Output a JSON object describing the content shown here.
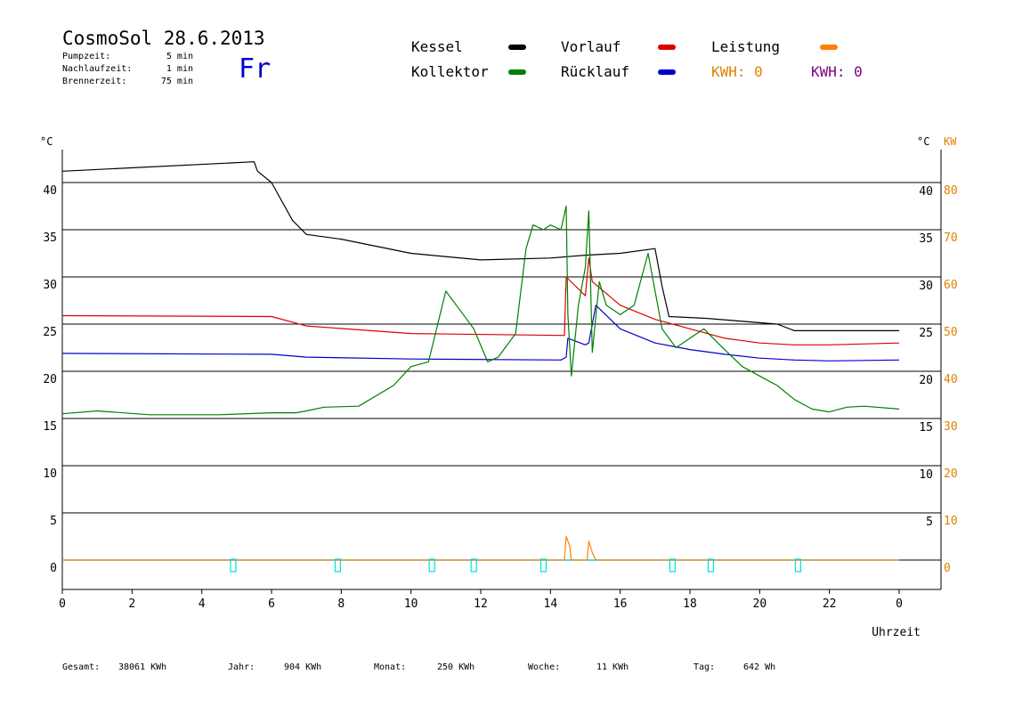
{
  "header": {
    "title": "CosmoSol 28.6.2013",
    "day": "Fr",
    "times": [
      {
        "label": "Pumpzeit:",
        "value": "5 min"
      },
      {
        "label": "Nachlaufzeit:",
        "value": "1 min"
      },
      {
        "label": "Brennerzeit:",
        "value": "75 min"
      }
    ]
  },
  "legend": {
    "kessel": "Kessel",
    "vorlauf": "Vorlauf",
    "leistung": "Leistung",
    "kollektor": "Kollektor",
    "ruecklauf": "Rücklauf",
    "kwh1": "KWH: 0",
    "kwh2": "KWH: 0"
  },
  "colors": {
    "kessel": "#000000",
    "vorlauf": "#dd0000",
    "leistung": "#ff8000",
    "kollektor": "#008000",
    "ruecklauf": "#0000cc",
    "kwh2": "#800080",
    "pump": "#00e0e0",
    "axis_right": "#e08000"
  },
  "footer": {
    "gesamt_label": "Gesamt:",
    "gesamt_value": "38061 KWh",
    "jahr_label": "Jahr:",
    "jahr_value": "904 KWh",
    "monat_label": "Monat:",
    "monat_value": "250 KWh",
    "woche_label": "Woche:",
    "woche_value": "11 KWh",
    "tag_label": "Tag:",
    "tag_value": "642 Wh"
  },
  "chart_data": {
    "type": "line",
    "xlabel": "Uhrzeit",
    "ylabel_left": "°C",
    "ylabel_right_temp": "°C",
    "ylabel_right_power": "KW",
    "x_ticks": [
      "0",
      "2",
      "4",
      "6",
      "8",
      "10",
      "12",
      "14",
      "16",
      "18",
      "20",
      "22",
      "0"
    ],
    "y_left_ticks": [
      "0",
      "5",
      "10",
      "15",
      "20",
      "25",
      "30",
      "35",
      "40"
    ],
    "y_right_temp_ticks": [
      "5",
      "10",
      "15",
      "20",
      "25",
      "30",
      "35",
      "40"
    ],
    "y_right_power_ticks": [
      "0",
      "10",
      "20",
      "30",
      "40",
      "50",
      "60",
      "70",
      "80"
    ],
    "xlim": [
      0,
      24
    ],
    "ylim": [
      0,
      43
    ],
    "series": [
      {
        "name": "Kessel",
        "key": "kessel",
        "points": [
          [
            0,
            41.2
          ],
          [
            5.5,
            42.2
          ],
          [
            5.6,
            41.2
          ],
          [
            6.0,
            40.0
          ],
          [
            6.6,
            36.0
          ],
          [
            7.0,
            34.5
          ],
          [
            8.0,
            34.0
          ],
          [
            10.0,
            32.5
          ],
          [
            12.0,
            31.8
          ],
          [
            14.0,
            32.0
          ],
          [
            15.0,
            32.3
          ],
          [
            16.0,
            32.5
          ],
          [
            17.0,
            33.0
          ],
          [
            17.2,
            29.0
          ],
          [
            17.4,
            25.8
          ],
          [
            18.5,
            25.6
          ],
          [
            20.5,
            25.0
          ],
          [
            21.0,
            24.3
          ],
          [
            24,
            24.3
          ]
        ]
      },
      {
        "name": "Vorlauf",
        "key": "vorlauf",
        "points": [
          [
            0,
            25.9
          ],
          [
            6.0,
            25.8
          ],
          [
            7.0,
            24.8
          ],
          [
            10.0,
            24.0
          ],
          [
            14.3,
            23.8
          ],
          [
            14.4,
            23.8
          ],
          [
            14.45,
            30.0
          ],
          [
            15.0,
            28.0
          ],
          [
            15.1,
            32.0
          ],
          [
            15.2,
            29.5
          ],
          [
            16.0,
            27.0
          ],
          [
            17.0,
            25.5
          ],
          [
            18.0,
            24.5
          ],
          [
            19.0,
            23.5
          ],
          [
            20.0,
            23.0
          ],
          [
            21.0,
            22.8
          ],
          [
            22.0,
            22.8
          ],
          [
            24,
            23.0
          ]
        ]
      },
      {
        "name": "Rücklauf",
        "key": "ruecklauf",
        "points": [
          [
            0,
            21.9
          ],
          [
            6.0,
            21.8
          ],
          [
            7.0,
            21.5
          ],
          [
            10.0,
            21.3
          ],
          [
            14.3,
            21.2
          ],
          [
            14.45,
            21.5
          ],
          [
            14.5,
            23.5
          ],
          [
            15.0,
            22.8
          ],
          [
            15.1,
            23.0
          ],
          [
            15.3,
            27.0
          ],
          [
            16.0,
            24.5
          ],
          [
            17.0,
            23.0
          ],
          [
            18.0,
            22.3
          ],
          [
            19.0,
            21.8
          ],
          [
            20.0,
            21.4
          ],
          [
            21.0,
            21.2
          ],
          [
            22.0,
            21.1
          ],
          [
            24,
            21.2
          ]
        ]
      },
      {
        "name": "Kollektor",
        "key": "kollektor",
        "points": [
          [
            0,
            15.5
          ],
          [
            1.0,
            15.8
          ],
          [
            2.5,
            15.4
          ],
          [
            4.5,
            15.4
          ],
          [
            6.0,
            15.6
          ],
          [
            6.7,
            15.6
          ],
          [
            7.0,
            15.8
          ],
          [
            7.5,
            16.2
          ],
          [
            8.5,
            16.3
          ],
          [
            9.5,
            18.5
          ],
          [
            10.0,
            20.5
          ],
          [
            10.5,
            21.0
          ],
          [
            11.0,
            28.5
          ],
          [
            11.3,
            27.0
          ],
          [
            11.8,
            24.5
          ],
          [
            12.2,
            21.0
          ],
          [
            12.5,
            21.5
          ],
          [
            13.0,
            24.0
          ],
          [
            13.3,
            33.0
          ],
          [
            13.5,
            35.5
          ],
          [
            13.8,
            35.0
          ],
          [
            14.0,
            35.5
          ],
          [
            14.3,
            35.0
          ],
          [
            14.45,
            37.5
          ],
          [
            14.5,
            26.0
          ],
          [
            14.6,
            19.5
          ],
          [
            14.8,
            27.0
          ],
          [
            15.0,
            31.0
          ],
          [
            15.1,
            37.0
          ],
          [
            15.2,
            22.0
          ],
          [
            15.4,
            29.5
          ],
          [
            15.6,
            27.0
          ],
          [
            16.0,
            26.0
          ],
          [
            16.4,
            27.0
          ],
          [
            16.8,
            32.5
          ],
          [
            17.2,
            24.5
          ],
          [
            17.6,
            22.5
          ],
          [
            18.0,
            23.5
          ],
          [
            18.4,
            24.5
          ],
          [
            18.8,
            23.0
          ],
          [
            19.5,
            20.5
          ],
          [
            20.0,
            19.5
          ],
          [
            20.5,
            18.5
          ],
          [
            21.0,
            17.0
          ],
          [
            21.5,
            16.0
          ],
          [
            22.0,
            15.7
          ],
          [
            22.5,
            16.2
          ],
          [
            23.0,
            16.3
          ],
          [
            24,
            16.0
          ]
        ]
      },
      {
        "name": "Leistung",
        "key": "leistung",
        "points": [
          [
            0,
            0
          ],
          [
            14.4,
            0
          ],
          [
            14.45,
            2.5
          ],
          [
            14.55,
            1.5
          ],
          [
            14.6,
            0
          ],
          [
            15.05,
            0
          ],
          [
            15.1,
            2.0
          ],
          [
            15.2,
            0.8
          ],
          [
            15.3,
            0
          ],
          [
            24,
            0
          ]
        ]
      }
    ],
    "pump_markers": [
      4.9,
      7.9,
      10.6,
      11.8,
      13.8,
      17.5,
      18.6,
      21.1
    ]
  }
}
